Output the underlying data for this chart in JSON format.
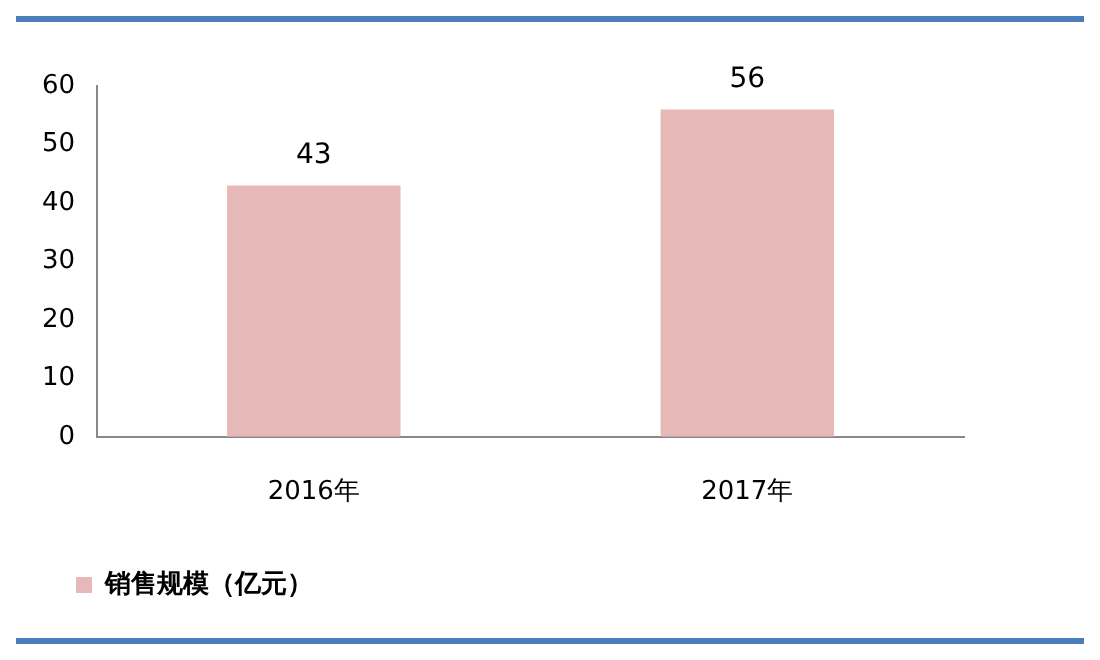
{
  "chart_data": {
    "type": "bar",
    "categories": [
      "2016年",
      "2017年"
    ],
    "series": [
      {
        "name": "销售规模（亿元）",
        "color": "#e6b8b7",
        "values": [
          43,
          56
        ]
      }
    ],
    "ylim": [
      0,
      60
    ],
    "yticks": [
      0,
      10,
      20,
      30,
      40,
      50,
      60
    ],
    "grid": false,
    "legend": "bottom",
    "data_labels": true
  }
}
